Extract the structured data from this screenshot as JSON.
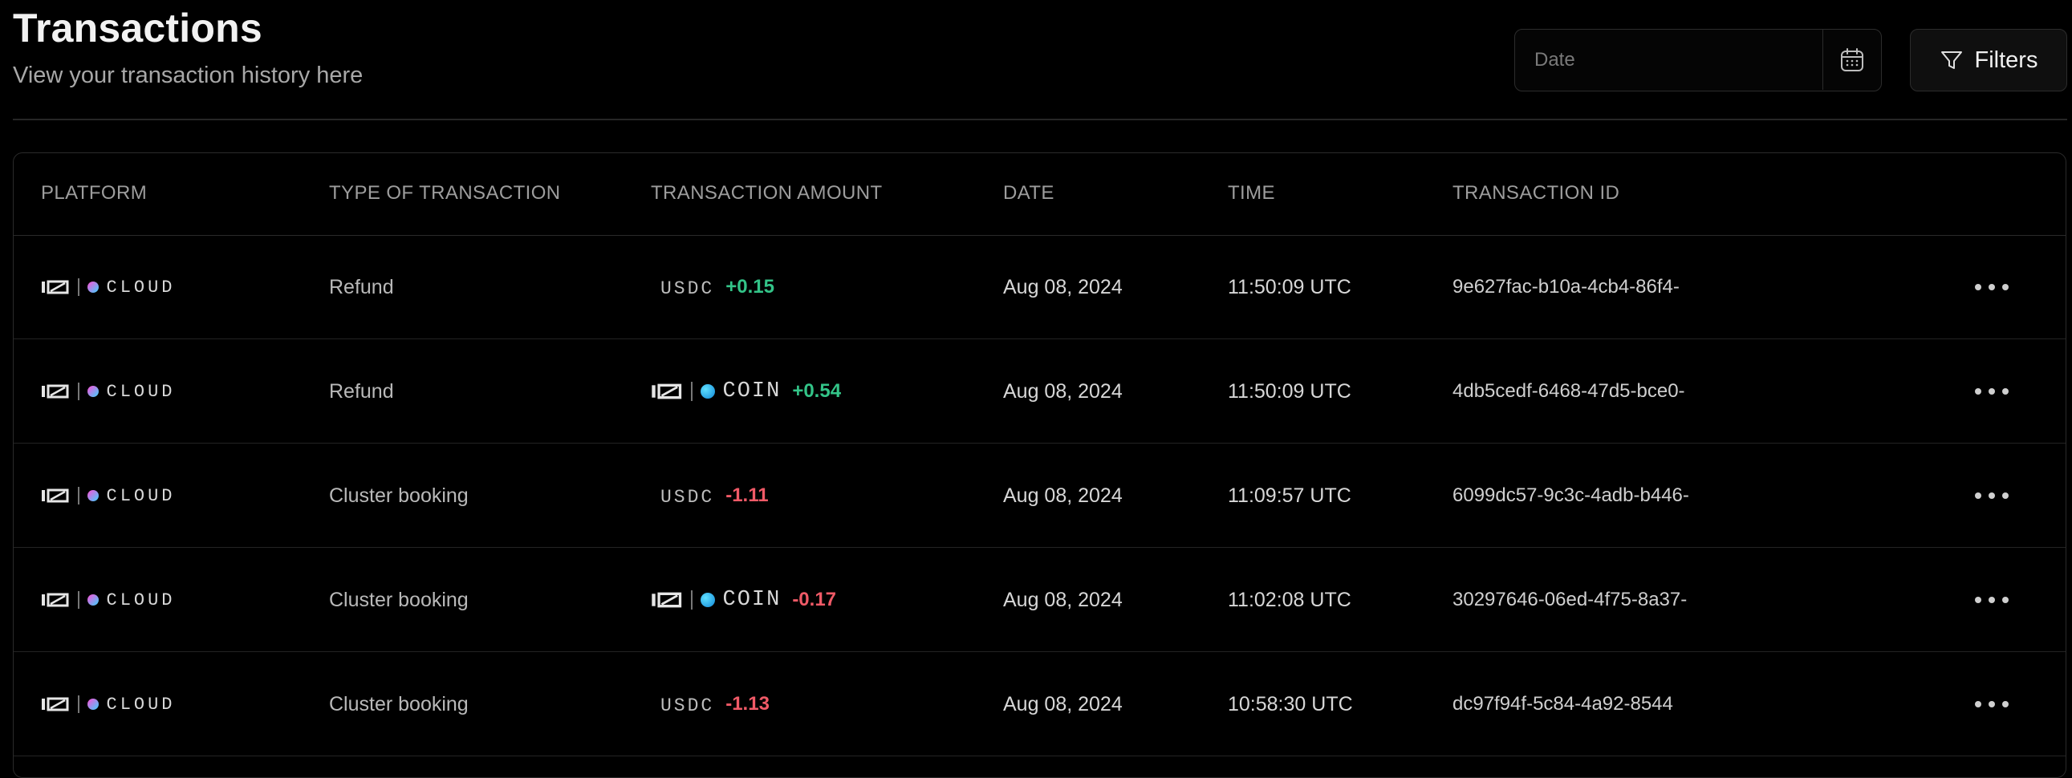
{
  "header": {
    "title": "Transactions",
    "subtitle": "View your transaction history here"
  },
  "date_picker": {
    "placeholder": "Date",
    "value": ""
  },
  "filters": {
    "label": "Filters"
  },
  "table": {
    "columns": [
      "PLATFORM",
      "TYPE OF TRANSACTION",
      "TRANSACTION AMOUNT",
      "DATE",
      "TIME",
      "TRANSACTION ID"
    ],
    "rows": [
      {
        "platform_logo": "CLOUD",
        "type": "Refund",
        "currency_logo": "USDC",
        "amount": "+0.15",
        "sign": "positive",
        "date": "Aug 08, 2024",
        "time": "11:50:09 UTC",
        "transaction_id": "9e627fac-b10a-4cb4-86f4-"
      },
      {
        "platform_logo": "CLOUD",
        "type": "Refund",
        "currency_logo": "COIN",
        "amount": "+0.54",
        "sign": "positive",
        "date": "Aug 08, 2024",
        "time": "11:50:09 UTC",
        "transaction_id": "4db5cedf-6468-47d5-bce0-"
      },
      {
        "platform_logo": "CLOUD",
        "type": "Cluster booking",
        "currency_logo": "USDC",
        "amount": "-1.11",
        "sign": "negative",
        "date": "Aug 08, 2024",
        "time": "11:09:57 UTC",
        "transaction_id": "6099dc57-9c3c-4adb-b446-"
      },
      {
        "platform_logo": "CLOUD",
        "type": "Cluster booking",
        "currency_logo": "COIN",
        "amount": "-0.17",
        "sign": "negative",
        "date": "Aug 08, 2024",
        "time": "11:02:08 UTC",
        "transaction_id": "30297646-06ed-4f75-8a37-"
      },
      {
        "platform_logo": "CLOUD",
        "type": "Cluster booking",
        "currency_logo": "USDC",
        "amount": "-1.13",
        "sign": "negative",
        "date": "Aug 08, 2024",
        "time": "10:58:30 UTC",
        "transaction_id": "dc97f94f-5c84-4a92-8544"
      }
    ]
  },
  "colors": {
    "background": "#000000",
    "positive": "#33c488",
    "negative": "#f05a67",
    "border": "#2a2a2a"
  },
  "icons": {
    "calendar": "calendar-icon",
    "filter": "filter-icon",
    "more": "more-horizontal-icon"
  }
}
